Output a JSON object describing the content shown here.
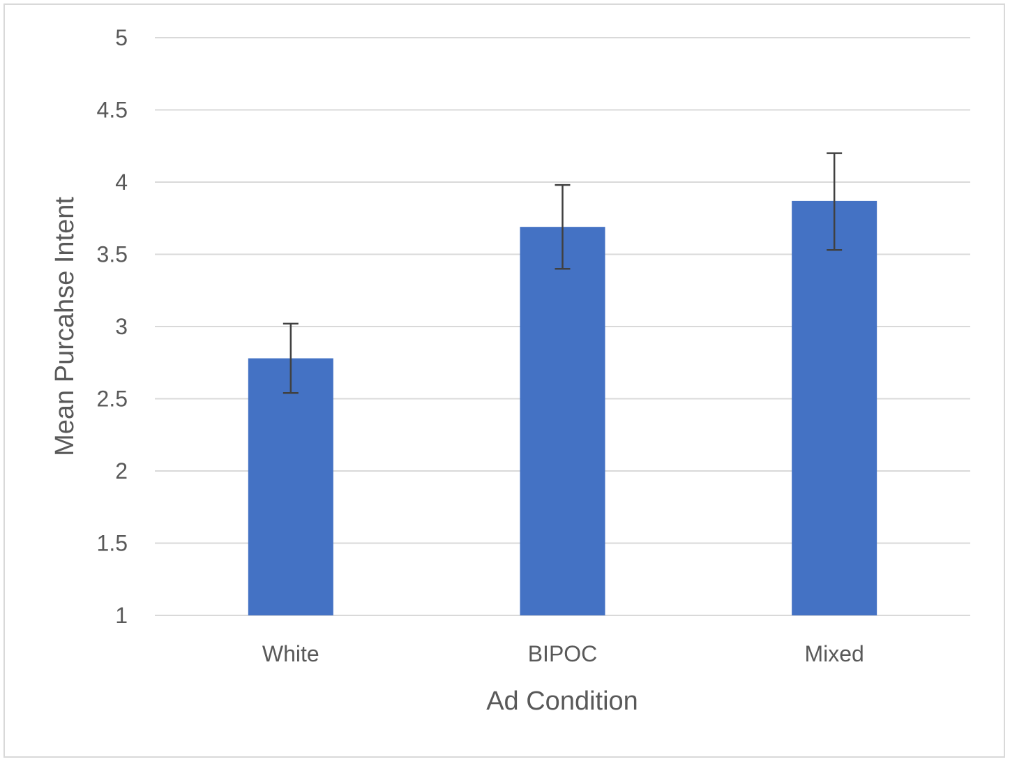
{
  "chart_data": {
    "type": "bar",
    "title": "",
    "xlabel": "Ad Condition",
    "ylabel": "Mean Purcahse Intent",
    "categories": [
      "White",
      "BIPOC",
      "Mixed"
    ],
    "series": [
      {
        "values": [
          2.78,
          3.69,
          3.87
        ],
        "error_low": [
          2.54,
          3.4,
          3.53
        ],
        "error_high": [
          3.02,
          3.98,
          4.2
        ]
      }
    ],
    "ylim": [
      1,
      5
    ],
    "yticks": [
      1,
      1.5,
      2,
      2.5,
      3,
      3.5,
      4,
      4.5,
      5
    ],
    "ytick_labels": [
      "1",
      "1.5",
      "2",
      "2.5",
      "3",
      "3.5",
      "4",
      "4.5",
      "5"
    ],
    "grid": true,
    "legend": "none",
    "colors": {
      "bar": "#4472c4",
      "grid": "#d9d9d9",
      "error": "#404040",
      "text": "#595959"
    }
  }
}
